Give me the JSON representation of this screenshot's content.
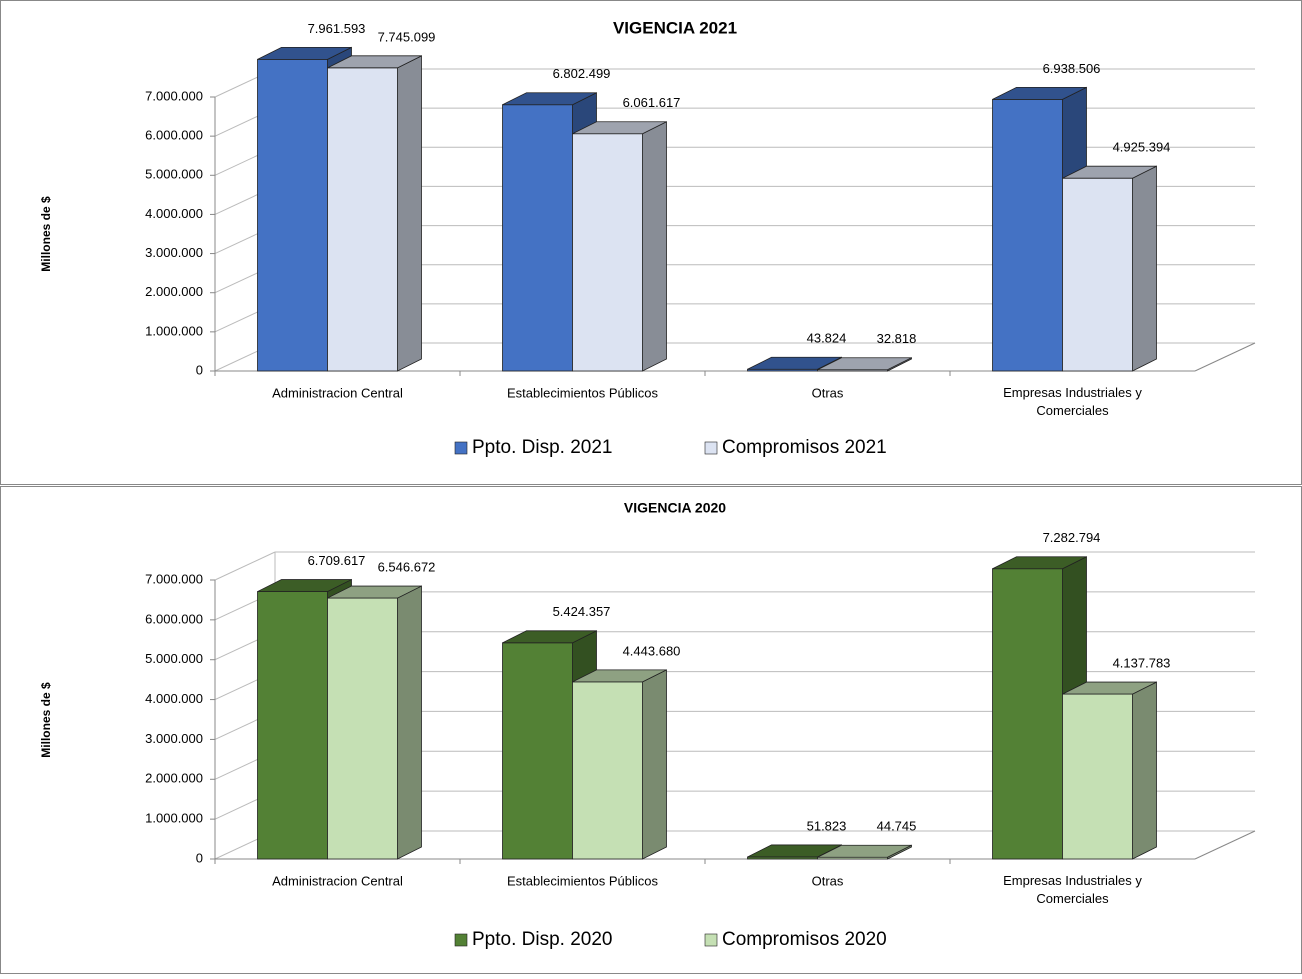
{
  "chart_data": [
    {
      "type": "bar3d",
      "title": "VIGENCIA 2021",
      "y_label": "Millones de $",
      "categories": [
        "Administracion Central",
        "Establecimientos Públicos",
        "Otras",
        "Empresas Industriales y Comerciales"
      ],
      "series": [
        {
          "name": "Ppto. Disp. 2021",
          "color": "#4472c4",
          "values": [
            7961593,
            6802499,
            43824,
            6938506
          ],
          "value_labels": [
            "7.961.593",
            "6.802.499",
            "43.824",
            "6.938.506"
          ]
        },
        {
          "name": "Compromisos 2021",
          "color": "#dce3f2",
          "values": [
            7745099,
            6061617,
            32818,
            4925394
          ],
          "value_labels": [
            "7.745.099",
            "6.061.617",
            "32.818",
            "4.925.394"
          ]
        }
      ],
      "ylim": [
        0,
        7000000
      ],
      "yticks": [
        0,
        {
          "value": 1000000,
          "label": "1.000.000"
        },
        {
          "value": 2000000,
          "label": "2.000.000"
        },
        {
          "value": 3000000,
          "label": "3.000.000"
        },
        {
          "value": 4000000,
          "label": "4.000.000"
        },
        {
          "value": 5000000,
          "label": "5.000.000"
        },
        {
          "value": 6000000,
          "label": "6.000.000"
        },
        {
          "value": 7000000,
          "label": "7.000.000"
        }
      ],
      "grid": true,
      "legend": "bottom"
    },
    {
      "type": "bar3d",
      "title": "VIGENCIA 2020",
      "y_label": "Millones de $",
      "categories": [
        "Administracion Central",
        "Establecimientos Públicos",
        "Otras",
        "Empresas Industriales y Comerciales"
      ],
      "series": [
        {
          "name": "Ppto. Disp. 2020",
          "color": "#538135",
          "values": [
            6709617,
            5424357,
            51823,
            7282794
          ],
          "value_labels": [
            "6.709.617",
            "5.424.357",
            "51.823",
            "7.282.794"
          ]
        },
        {
          "name": "Compromisos 2020",
          "color": "#c5e0b4",
          "values": [
            6546672,
            4443680,
            44745,
            4137783
          ],
          "value_labels": [
            "6.546.672",
            "4.443.680",
            "44.745",
            "4.137.783"
          ]
        }
      ],
      "ylim": [
        0,
        7000000
      ],
      "yticks": [
        0,
        {
          "value": 1000000,
          "label": "1.000.000"
        },
        {
          "value": 2000000,
          "label": "2.000.000"
        },
        {
          "value": 3000000,
          "label": "3.000.000"
        },
        {
          "value": 4000000,
          "label": "4.000.000"
        },
        {
          "value": 5000000,
          "label": "5.000.000"
        },
        {
          "value": 6000000,
          "label": "6.000.000"
        },
        {
          "value": 7000000,
          "label": "7.000.000"
        }
      ],
      "grid": true,
      "legend": "bottom"
    }
  ]
}
